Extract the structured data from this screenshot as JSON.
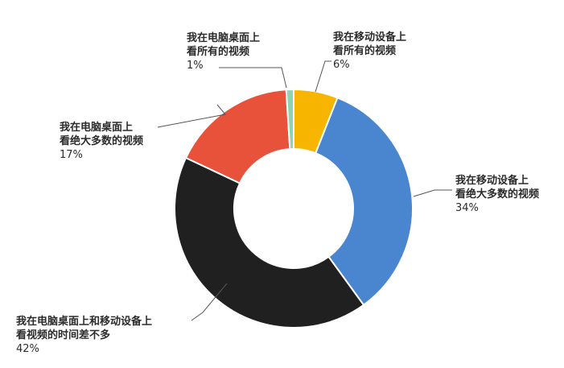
{
  "chart_data": {
    "type": "pie",
    "donut": true,
    "title": "",
    "slices": [
      {
        "line1": "我在移动设备上",
        "line2": "看所有的视频",
        "pct_label": "6%",
        "value": 6,
        "color": "#f7b500"
      },
      {
        "line1": "我在移动设备上",
        "line2": "看绝大多数的视频",
        "pct_label": "34%",
        "value": 34,
        "color": "#4a86cf"
      },
      {
        "line1": "我在电脑桌面上和移动设备上",
        "line2": "看视频的时间差不多",
        "pct_label": "42%",
        "value": 42,
        "color": "#202020"
      },
      {
        "line1": "我在电脑桌面上",
        "line2": "看绝大多数的视频",
        "pct_label": "17%",
        "value": 17,
        "color": "#e8513a"
      },
      {
        "line1": "我在电脑桌面上",
        "line2": "看所有的视频",
        "pct_label": "1%",
        "value": 1,
        "color": "#8fd3b6"
      }
    ]
  }
}
